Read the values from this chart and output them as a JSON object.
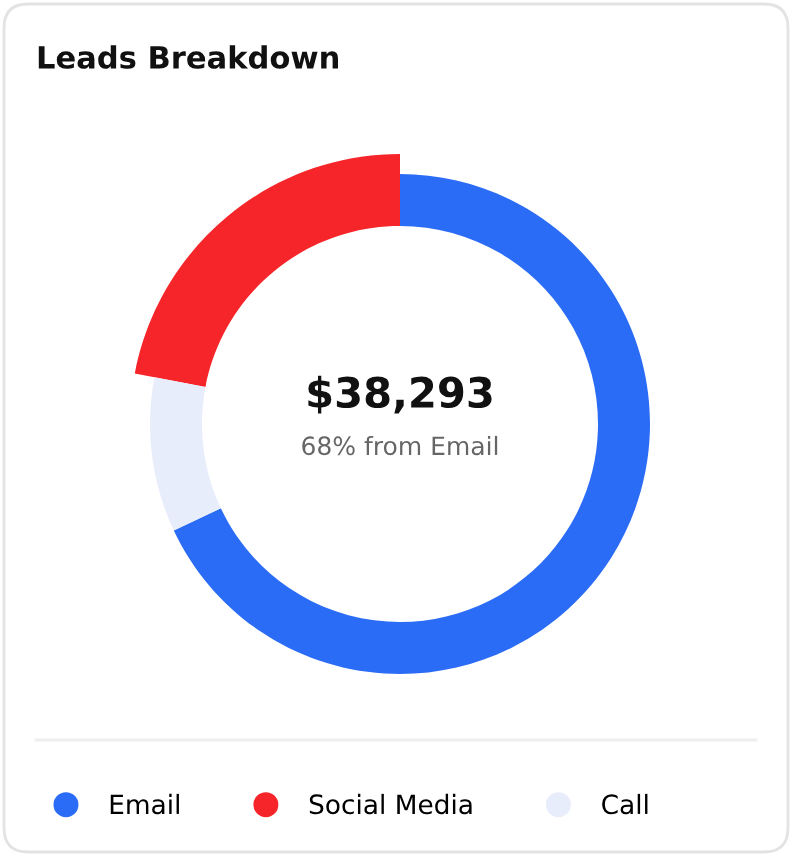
{
  "chart_data": {
    "type": "donut",
    "title": "Leads Breakdown",
    "categories": [
      "Email",
      "Social Media",
      "Call"
    ],
    "values": [
      68,
      22,
      10
    ],
    "colors": [
      "#2a6cf6",
      "#f5252a",
      "#e8edfb"
    ],
    "annotations": [
      "$38,293",
      "68% from Email"
    ],
    "legend": "bottom"
  }
}
